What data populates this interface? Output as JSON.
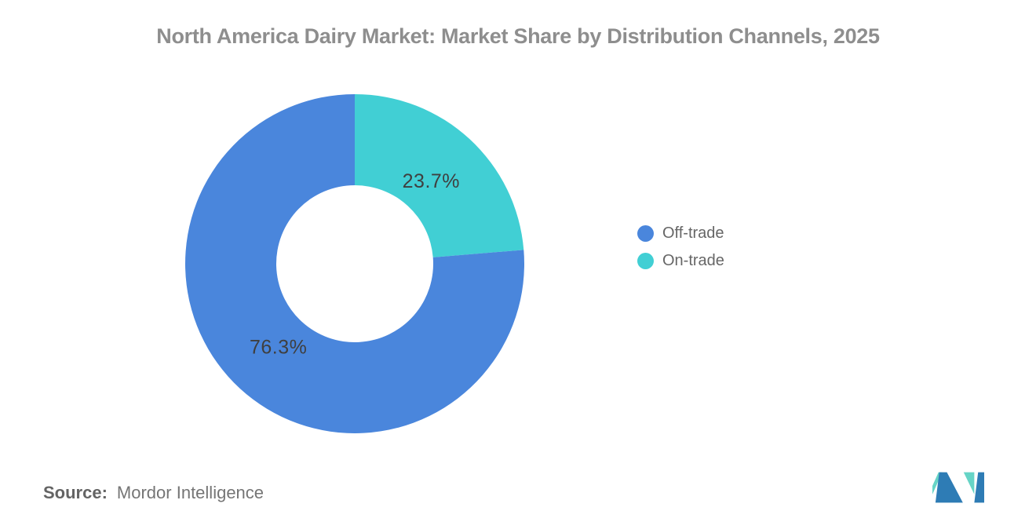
{
  "title": "North America Dairy Market: Market Share by Distribution Channels, 2025",
  "chart_data": {
    "type": "pie",
    "variant": "donut",
    "title": "North America Dairy Market: Market Share by Distribution Channels, 2025",
    "start_angle_deg": 0,
    "direction": "clockwise",
    "slices_clockwise_from_top": [
      {
        "label": "On-trade",
        "value": 23.7,
        "color": "#41CFD4"
      },
      {
        "label": "Off-trade",
        "value": 76.3,
        "color": "#4A86DC"
      }
    ],
    "value_label_suffix": "%",
    "value_label_color": "#3F3F3F",
    "inner_radius_ratio": 0.463,
    "label_radius_ratio": 0.665,
    "legend": {
      "position": "right",
      "items": [
        {
          "label": "Off-trade",
          "color": "#4A86DC"
        },
        {
          "label": "On-trade",
          "color": "#41CFD4"
        }
      ]
    }
  },
  "source": {
    "label": "Source:",
    "name": "Mordor Intelligence"
  },
  "logo": {
    "name": "mordor-intelligence-logo",
    "blue": "#2E7CB5",
    "mint": "#66D4C6"
  }
}
